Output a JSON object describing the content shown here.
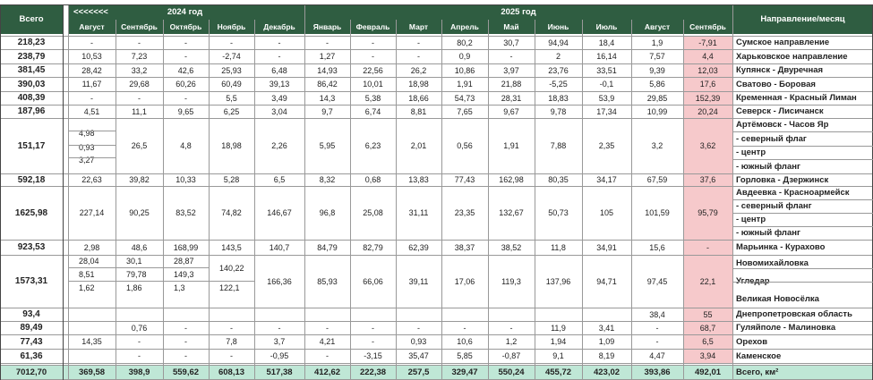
{
  "headers": {
    "total": "Всего",
    "arrows": "<<<<<<<",
    "year_2024": "2024 год",
    "year_2025": "2025 год",
    "direction": "Направление/месяц",
    "months": [
      "Август",
      "Сентябрь",
      "Октябрь",
      "Ноябрь",
      "Декабрь",
      "Январь",
      "Февраль",
      "Март",
      "Апрель",
      "Май",
      "Июнь",
      "Июль",
      "Август",
      "Сентябрь"
    ]
  },
  "rows": [
    {
      "total": "218,23",
      "name": "Сумское направление",
      "values": [
        "-",
        "-",
        "-",
        "-",
        "-",
        "-",
        "-",
        "-",
        "80,2",
        "30,7",
        "94,94",
        "18,4",
        "1,9",
        "-7,91"
      ]
    },
    {
      "total": "238,79",
      "name": "Харьковское направление",
      "values": [
        "10,53",
        "7,23",
        "-",
        "-2,74",
        "-",
        "1,27",
        "-",
        "-",
        "0,9",
        "-",
        "2",
        "16,14",
        "7,57",
        "4,4"
      ]
    },
    {
      "total": "381,45",
      "name": "Купянск - Двуречная",
      "values": [
        "28,42",
        "33,2",
        "42,6",
        "25,93",
        "6,48",
        "14,93",
        "22,56",
        "26,2",
        "10,86",
        "3,97",
        "23,76",
        "33,51",
        "9,39",
        "12,03"
      ]
    },
    {
      "total": "390,03",
      "name": "Сватово - Боровая",
      "values": [
        "11,67",
        "29,68",
        "60,26",
        "60,49",
        "39,13",
        "86,42",
        "10,01",
        "18,98",
        "1,91",
        "21,88",
        "-5,25",
        "-0,1",
        "5,86",
        "17,6"
      ]
    },
    {
      "total": "408,39",
      "name": "Кременная - Красный Лиман",
      "values": [
        "-",
        "-",
        "-",
        "5,5",
        "3,49",
        "14,3",
        "5,38",
        "18,66",
        "54,73",
        "28,31",
        "18,83",
        "53,9",
        "29,85",
        "152,39"
      ]
    },
    {
      "total": "187,96",
      "name": "Северск - Лисичанск",
      "values": [
        "4,51",
        "11,1",
        "9,65",
        "6,25",
        "3,04",
        "9,7",
        "6,74",
        "8,81",
        "7,65",
        "9,67",
        "9,78",
        "17,34",
        "10,99",
        "20,24"
      ]
    },
    {
      "total": "151,17",
      "names": [
        "Артёмовск - Часов Яр",
        "- северный флаг",
        "- центр",
        "- южный фланг"
      ],
      "aug_sub": [
        "4,98",
        "0,93",
        "3,27"
      ],
      "values": [
        "",
        "26,5",
        "4,8",
        "18,98",
        "2,26",
        "5,95",
        "6,23",
        "2,01",
        "0,56",
        "1,91",
        "7,88",
        "2,35",
        "3,2",
        "3,62"
      ]
    },
    {
      "total": "592,18",
      "name": "Горловка - Дзержинск",
      "values": [
        "22,63",
        "39,82",
        "10,33",
        "5,28",
        "6,5",
        "8,32",
        "0,68",
        "13,83",
        "77,43",
        "162,98",
        "80,35",
        "34,17",
        "67,59",
        "37,6"
      ]
    },
    {
      "total": "1625,98",
      "names": [
        "Авдеевка - Красноармейск",
        "- северный фланг",
        "- центр",
        "- южный фланг"
      ],
      "values": [
        "227,14",
        "90,25",
        "83,52",
        "74,82",
        "146,67",
        "96,8",
        "25,08",
        "31,11",
        "23,35",
        "132,67",
        "50,73",
        "105",
        "101,59",
        "95,79"
      ]
    },
    {
      "total": "923,53",
      "name": "Марьинка - Курахово",
      "values": [
        "2,98",
        "48,6",
        "168,99",
        "143,5",
        "140,7",
        "84,79",
        "82,79",
        "62,39",
        "38,37",
        "38,52",
        "11,8",
        "34,91",
        "15,6",
        "-"
      ]
    },
    {
      "total": "1573,31",
      "names": [
        "Новомихайловка",
        "Угледар",
        "Великая Новосёлка"
      ],
      "sub": [
        [
          "28,04",
          "8,51",
          "1,62"
        ],
        [
          "30,1",
          "79,78",
          "1,86"
        ],
        [
          "28,87",
          "149,3",
          "1,3"
        ],
        [
          "140,22",
          "122,1"
        ]
      ],
      "values": [
        "",
        "",
        "",
        "",
        "166,36",
        "85,93",
        "66,06",
        "39,11",
        "17,06",
        "119,3",
        "137,96",
        "94,71",
        "97,45",
        "22,1"
      ]
    },
    {
      "total": "93,4",
      "name": "Днепропетровская область",
      "values": [
        "",
        "",
        "",
        "",
        "",
        "",
        "",
        "",
        "",
        "",
        "",
        "",
        "38,4",
        "55"
      ]
    },
    {
      "total": "89,49",
      "name": "Гуляйполе - Малиновка",
      "values": [
        "",
        "0,76",
        "-",
        "-",
        "-",
        "-",
        "-",
        "-",
        "-",
        "-",
        "11,9",
        "3,41",
        "-",
        "68,7"
      ]
    },
    {
      "total": "77,43",
      "name": "Орехов",
      "values": [
        "14,35",
        "-",
        "-",
        "7,8",
        "3,7",
        "4,21",
        "-",
        "0,93",
        "10,6",
        "1,2",
        "1,94",
        "1,09",
        "-",
        "6,5"
      ]
    },
    {
      "total": "61,36",
      "name": "Каменское",
      "values": [
        "",
        "-",
        "-",
        "-",
        "-0,95",
        "-",
        "-3,15",
        "35,47",
        "5,85",
        "-0,87",
        "9,1",
        "8,19",
        "4,47",
        "3,94"
      ]
    }
  ],
  "footer": {
    "total": "7012,70",
    "label": "Всего, км²",
    "values": [
      "369,58",
      "398,9",
      "559,62",
      "608,13",
      "517,38",
      "412,62",
      "222,38",
      "257,5",
      "329,47",
      "550,24",
      "455,72",
      "423,02",
      "393,86",
      "492,01"
    ]
  }
}
